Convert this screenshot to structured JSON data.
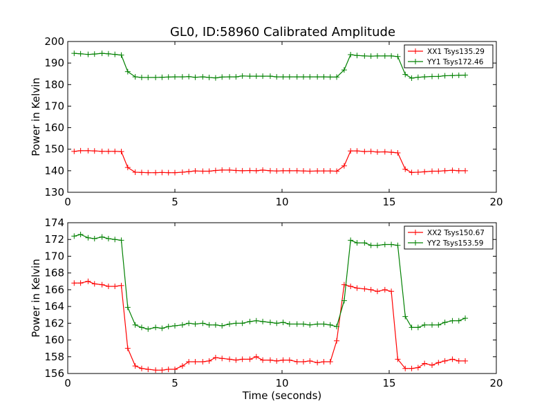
{
  "title": "GL0, ID:58960 Calibrated Amplitude",
  "chart_data": [
    {
      "type": "line",
      "xlabel": "",
      "ylabel": "Power in Kelvin",
      "xlim": [
        0,
        20
      ],
      "ylim": [
        130,
        200
      ],
      "xticks": [
        0,
        5,
        10,
        15,
        20
      ],
      "yticks": [
        130,
        140,
        150,
        160,
        170,
        180,
        190,
        200
      ],
      "grid": false,
      "legend": "top-right",
      "x": [
        0.3,
        0.6,
        0.95,
        1.25,
        1.6,
        1.9,
        2.2,
        2.5,
        2.8,
        3.15,
        3.45,
        3.75,
        4.1,
        4.4,
        4.7,
        5.0,
        5.35,
        5.65,
        5.95,
        6.3,
        6.6,
        6.9,
        7.2,
        7.55,
        7.85,
        8.15,
        8.5,
        8.8,
        9.1,
        9.45,
        9.75,
        10.05,
        10.35,
        10.7,
        11.0,
        11.3,
        11.65,
        11.95,
        12.25,
        12.55,
        12.9,
        13.2,
        13.5,
        13.85,
        14.15,
        14.45,
        14.8,
        15.1,
        15.4,
        15.75,
        16.05,
        16.35,
        16.65,
        17.0,
        17.3,
        17.6,
        17.95,
        18.25,
        18.55
      ],
      "series": [
        {
          "name": "XX1 Tsys135.29",
          "color": "#ff0000",
          "values": [
            149.0,
            149.3,
            149.3,
            149.2,
            149.0,
            149.0,
            149.0,
            148.9,
            141.5,
            139.3,
            139.2,
            139.1,
            139.1,
            139.2,
            139.1,
            139.1,
            139.3,
            139.6,
            139.9,
            139.8,
            139.8,
            140.1,
            140.3,
            140.3,
            140.1,
            140.0,
            140.1,
            140.0,
            140.3,
            140.0,
            139.9,
            140.0,
            140.0,
            140.0,
            139.9,
            139.8,
            139.9,
            139.9,
            139.9,
            139.8,
            142.3,
            149.2,
            149.2,
            148.9,
            149.0,
            148.7,
            148.8,
            148.6,
            148.3,
            140.7,
            139.2,
            139.3,
            139.5,
            139.8,
            139.8,
            140.0,
            140.2,
            140.0,
            140.0
          ]
        },
        {
          "name": "YY1 Tsys172.46",
          "color": "#008000",
          "values": [
            194.5,
            194.3,
            194.0,
            194.2,
            194.5,
            194.3,
            194.0,
            193.7,
            186.0,
            183.6,
            183.3,
            183.3,
            183.3,
            183.4,
            183.5,
            183.6,
            183.6,
            183.7,
            183.4,
            183.6,
            183.3,
            183.1,
            183.5,
            183.6,
            183.6,
            184.0,
            183.9,
            183.9,
            183.9,
            183.9,
            183.6,
            183.6,
            183.6,
            183.6,
            183.6,
            183.6,
            183.6,
            183.6,
            183.5,
            183.5,
            186.8,
            193.9,
            193.5,
            193.3,
            193.2,
            193.3,
            193.3,
            193.3,
            193.0,
            184.7,
            183.0,
            183.4,
            183.6,
            183.8,
            183.8,
            184.1,
            184.2,
            184.3,
            184.4
          ]
        }
      ]
    },
    {
      "type": "line",
      "xlabel": "Time (seconds)",
      "ylabel": "Power in Kelvin",
      "xlim": [
        0,
        20
      ],
      "ylim": [
        156,
        174
      ],
      "xticks": [
        0,
        5,
        10,
        15,
        20
      ],
      "yticks": [
        156,
        158,
        160,
        162,
        164,
        166,
        168,
        170,
        172,
        174
      ],
      "grid": false,
      "legend": "top-right",
      "x": [
        0.3,
        0.6,
        0.95,
        1.25,
        1.6,
        1.9,
        2.2,
        2.5,
        2.8,
        3.15,
        3.45,
        3.75,
        4.1,
        4.4,
        4.7,
        5.0,
        5.35,
        5.65,
        5.95,
        6.3,
        6.6,
        6.9,
        7.2,
        7.55,
        7.85,
        8.15,
        8.5,
        8.8,
        9.1,
        9.45,
        9.75,
        10.05,
        10.35,
        10.7,
        11.0,
        11.3,
        11.65,
        11.95,
        12.25,
        12.55,
        12.9,
        13.2,
        13.5,
        13.85,
        14.15,
        14.45,
        14.8,
        15.1,
        15.4,
        15.75,
        16.05,
        16.35,
        16.65,
        17.0,
        17.3,
        17.6,
        17.95,
        18.25,
        18.55
      ],
      "series": [
        {
          "name": "XX2 Tsys150.67",
          "color": "#ff0000",
          "values": [
            166.8,
            166.8,
            167.0,
            166.7,
            166.6,
            166.4,
            166.4,
            166.5,
            159.0,
            156.9,
            156.6,
            156.5,
            156.4,
            156.4,
            156.5,
            156.5,
            156.9,
            157.4,
            157.4,
            157.4,
            157.5,
            157.9,
            157.8,
            157.7,
            157.6,
            157.7,
            157.7,
            158.0,
            157.6,
            157.6,
            157.5,
            157.6,
            157.6,
            157.4,
            157.4,
            157.5,
            157.3,
            157.4,
            157.4,
            159.9,
            166.6,
            166.4,
            166.2,
            166.1,
            166.0,
            165.8,
            166.0,
            165.8,
            157.7,
            156.6,
            156.6,
            156.7,
            157.2,
            157.0,
            157.3,
            157.5,
            157.7,
            157.5,
            157.5
          ]
        },
        {
          "name": "YY2 Tsys153.59",
          "color": "#008000",
          "values": [
            172.4,
            172.6,
            172.2,
            172.1,
            172.3,
            172.1,
            172.0,
            171.9,
            163.9,
            161.8,
            161.5,
            161.3,
            161.5,
            161.4,
            161.6,
            161.7,
            161.8,
            162.0,
            161.9,
            162.0,
            161.8,
            161.8,
            161.7,
            161.9,
            162.0,
            162.0,
            162.2,
            162.3,
            162.2,
            162.1,
            162.0,
            162.1,
            161.9,
            161.9,
            161.9,
            161.8,
            161.9,
            161.9,
            161.8,
            161.6,
            164.7,
            171.9,
            171.6,
            171.6,
            171.3,
            171.3,
            171.4,
            171.4,
            171.3,
            162.8,
            161.5,
            161.5,
            161.8,
            161.8,
            161.8,
            162.1,
            162.3,
            162.3,
            162.6
          ]
        }
      ]
    }
  ]
}
